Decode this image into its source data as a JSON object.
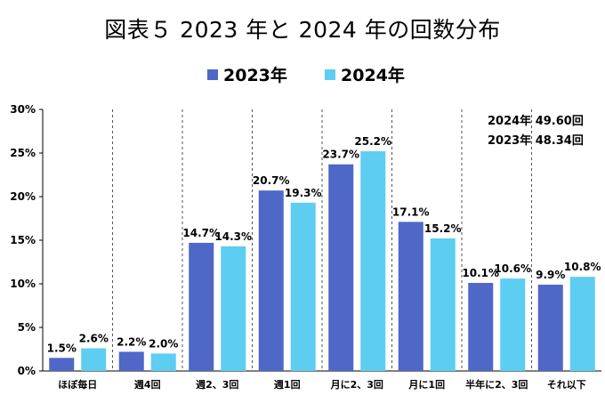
{
  "chart_data": {
    "type": "bar",
    "title": "図表５ 2023 年と 2024 年の回数分布",
    "categories": [
      "ほぼ毎日",
      "週4回",
      "週2、3回",
      "週1回",
      "月に2、3回",
      "月に1回",
      "半年に2、3回",
      "それ以下"
    ],
    "series": [
      {
        "name": "2023年",
        "color": "#4f67c6",
        "values": [
          1.5,
          2.2,
          14.7,
          20.7,
          23.7,
          17.1,
          10.1,
          9.9
        ],
        "labels": [
          "1.5%",
          "2.2%",
          "14.7%",
          "20.7%",
          "23.7%",
          "17.1%",
          "10.1%",
          "9.9%"
        ]
      },
      {
        "name": "2024年",
        "color": "#5dcdf2",
        "values": [
          2.6,
          2.0,
          14.3,
          19.3,
          25.2,
          15.2,
          10.6,
          10.8
        ],
        "labels": [
          "2.6%",
          "2.0%",
          "14.3%",
          "19.3%",
          "25.2%",
          "15.2%",
          "10.6%",
          "10.8%"
        ]
      }
    ],
    "ylim": [
      0,
      30
    ],
    "yticks": [
      0,
      5,
      10,
      15,
      20,
      25,
      30
    ],
    "ytick_labels": [
      "0%",
      "5%",
      "10%",
      "15%",
      "20%",
      "25%",
      "30%"
    ],
    "xlabel": "",
    "ylabel": "",
    "legend_position": "top-center",
    "category_separators": "dashed vertical",
    "annotations": [
      "2024年  49.60回",
      "2023年  48.34回"
    ]
  }
}
